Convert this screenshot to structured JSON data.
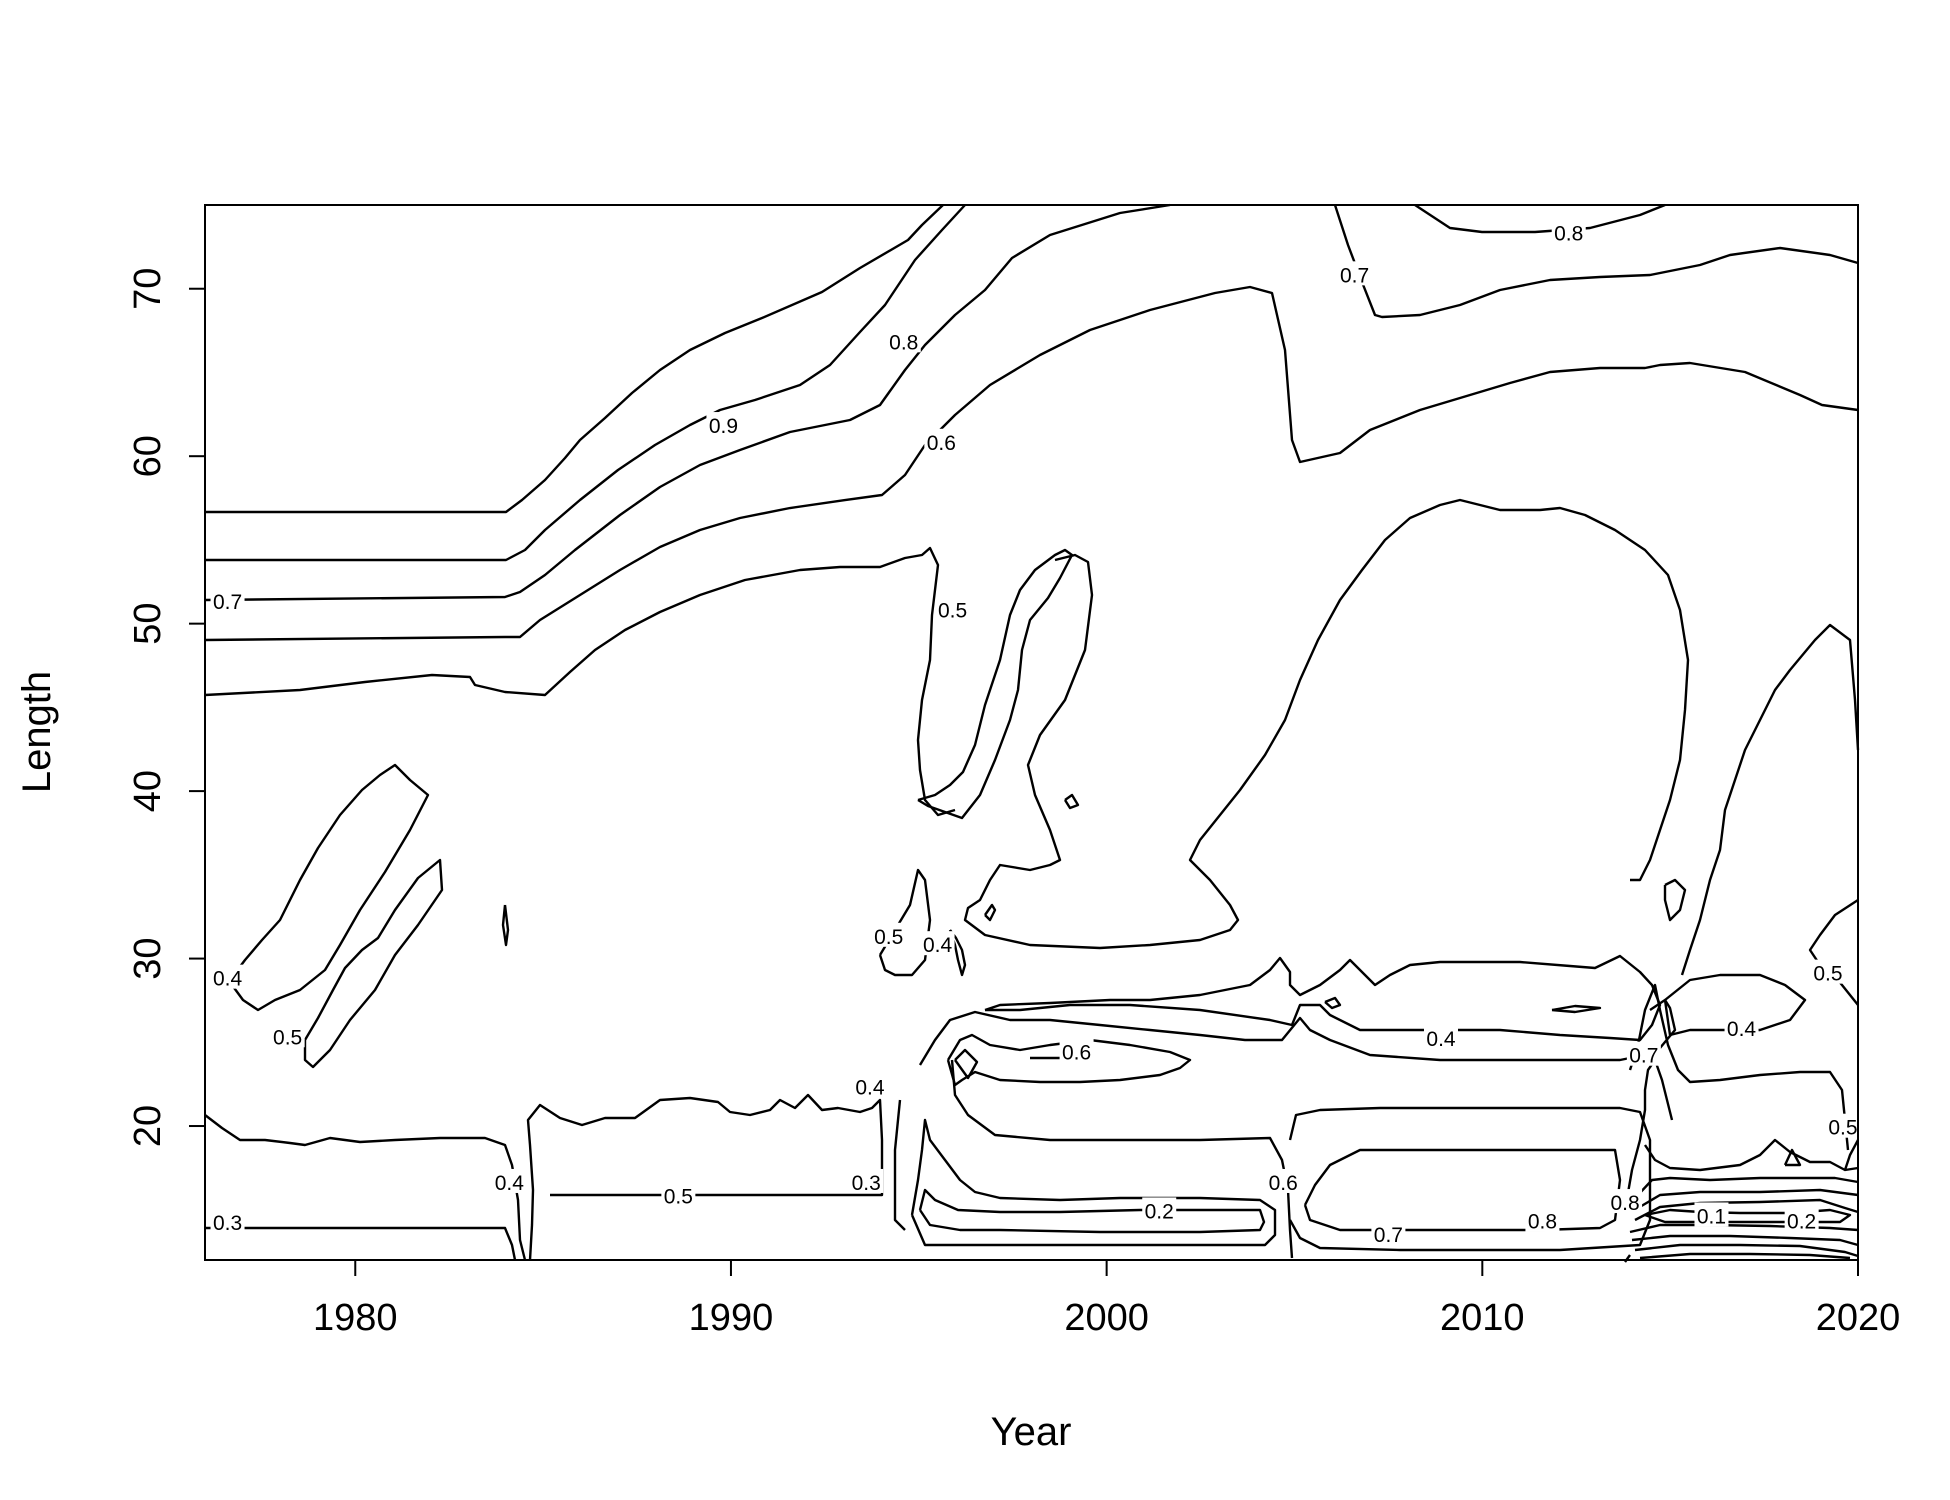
{
  "chart_data": {
    "type": "contour",
    "title": "",
    "xlabel": "Year",
    "ylabel": "Length",
    "xlim": [
      1976,
      2020
    ],
    "ylim": [
      12,
      75
    ],
    "x_ticks": [
      "1980",
      "1990",
      "2000",
      "2010",
      "2020"
    ],
    "y_ticks": [
      "20",
      "30",
      "40",
      "50",
      "60",
      "70"
    ],
    "levels": [
      "0.1",
      "0.2",
      "0.3",
      "0.4",
      "0.5",
      "0.6",
      "0.7",
      "0.8",
      "0.9"
    ],
    "contour_labels": [
      {
        "text": "0.9",
        "x": 1989.8,
        "y": 61.8
      },
      {
        "text": "0.8",
        "x": 1994.6,
        "y": 66.8
      },
      {
        "text": "0.6",
        "x": 1995.6,
        "y": 60.8
      },
      {
        "text": "0.7",
        "x": 2006.6,
        "y": 70.8
      },
      {
        "text": "0.8",
        "x": 2012.3,
        "y": 73.3
      },
      {
        "text": "0.7",
        "x": 1976.6,
        "y": 51.3
      },
      {
        "text": "0.5",
        "x": 1995.9,
        "y": 50.8
      },
      {
        "text": "0.4",
        "x": 1976.6,
        "y": 28.8
      },
      {
        "text": "0.5",
        "x": 1978.2,
        "y": 25.3
      },
      {
        "text": "0.5",
        "x": 1994.2,
        "y": 31.3
      },
      {
        "text": "0.4",
        "x": 1995.5,
        "y": 30.8
      },
      {
        "text": "0.6",
        "x": 1999.2,
        "y": 24.4
      },
      {
        "text": "0.4",
        "x": 2008.9,
        "y": 25.2
      },
      {
        "text": "0.7",
        "x": 2014.3,
        "y": 24.2
      },
      {
        "text": "0.4",
        "x": 2016.9,
        "y": 25.8
      },
      {
        "text": "0.5",
        "x": 2019.2,
        "y": 29.1
      },
      {
        "text": "0.4",
        "x": 1993.7,
        "y": 22.3
      },
      {
        "text": "0.5",
        "x": 2019.6,
        "y": 19.9
      },
      {
        "text": "0.4",
        "x": 1984.1,
        "y": 16.6
      },
      {
        "text": "0.5",
        "x": 1988.6,
        "y": 15.8
      },
      {
        "text": "0.3",
        "x": 1993.6,
        "y": 16.6
      },
      {
        "text": "0.6",
        "x": 2004.7,
        "y": 16.6
      },
      {
        "text": "0.3",
        "x": 1976.6,
        "y": 14.2
      },
      {
        "text": "0.2",
        "x": 2001.4,
        "y": 14.9
      },
      {
        "text": "0.7",
        "x": 2007.5,
        "y": 13.5
      },
      {
        "text": "0.8",
        "x": 2011.6,
        "y": 14.3
      },
      {
        "text": "0.8",
        "x": 2013.8,
        "y": 15.4
      },
      {
        "text": "0.1",
        "x": 2016.1,
        "y": 14.6
      },
      {
        "text": "0.2",
        "x": 2018.5,
        "y": 14.3
      }
    ]
  }
}
